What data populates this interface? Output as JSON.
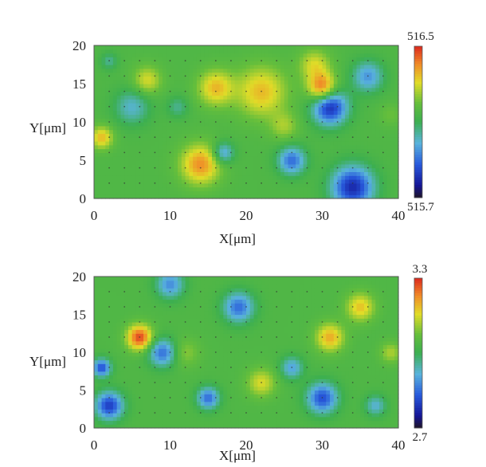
{
  "chart_data": [
    {
      "type": "heatmap",
      "title": "",
      "xlabel": "X[μm]",
      "ylabel": "Y[μm]",
      "xlim": [
        0,
        40
      ],
      "ylim": [
        0,
        20
      ],
      "x_ticks": [
        "0",
        "10",
        "20",
        "30",
        "40"
      ],
      "y_ticks": [
        "0",
        "5",
        "10",
        "15",
        "20"
      ],
      "colorbar": {
        "min": 515.7,
        "max": 516.5,
        "min_label": "515.7",
        "max_label": "516.5"
      },
      "grid_points": "measurement grid every 2 μm in X and Y (shown as dots)",
      "hotspots": [
        {
          "x": 14,
          "y": 4.5,
          "value": 516.4,
          "r": 2.8
        },
        {
          "x": 1,
          "y": 8,
          "value": 516.35,
          "r": 1.6
        },
        {
          "x": 30,
          "y": 14.5,
          "value": 516.45,
          "r": 2.0
        },
        {
          "x": 22,
          "y": 14,
          "value": 516.35,
          "r": 3.5
        },
        {
          "x": 16,
          "y": 14.5,
          "value": 516.35,
          "r": 2.5
        },
        {
          "x": 7,
          "y": 15.5,
          "value": 516.3,
          "r": 2.0
        },
        {
          "x": 29,
          "y": 17.5,
          "value": 516.3,
          "r": 2.2
        },
        {
          "x": 25,
          "y": 9.5,
          "value": 516.25,
          "r": 2.0
        },
        {
          "x": 39,
          "y": 11,
          "value": 516.2,
          "r": 1.6
        },
        {
          "x": 31,
          "y": 12,
          "value": 515.8,
          "r": 2.5
        },
        {
          "x": 34,
          "y": 1.5,
          "value": 515.8,
          "r": 3.0
        },
        {
          "x": 36,
          "y": 16,
          "value": 515.95,
          "r": 2.2
        },
        {
          "x": 5,
          "y": 12,
          "value": 516.0,
          "r": 2.5
        },
        {
          "x": 26,
          "y": 5,
          "value": 515.9,
          "r": 2.0
        },
        {
          "x": 17,
          "y": 6,
          "value": 515.95,
          "r": 1.5
        },
        {
          "x": 2,
          "y": 18,
          "value": 516.05,
          "r": 1.2
        },
        {
          "x": 11,
          "y": 12,
          "value": 516.05,
          "r": 1.5
        }
      ]
    },
    {
      "type": "heatmap",
      "title": "",
      "xlabel": "X[μm]",
      "ylabel": "Y[μm]",
      "xlim": [
        0,
        40
      ],
      "ylim": [
        0,
        20
      ],
      "x_ticks": [
        "0",
        "10",
        "20",
        "30",
        "40"
      ],
      "y_ticks": [
        "0",
        "5",
        "10",
        "15",
        "20"
      ],
      "colorbar": {
        "min": 2.7,
        "max": 3.3,
        "min_label": "2.7",
        "max_label": "3.3"
      },
      "grid_points": "measurement grid every 2 μm in X and Y (shown as dots)",
      "hotspots": [
        {
          "x": 6,
          "y": 12,
          "value": 3.28,
          "r": 1.8
        },
        {
          "x": 31,
          "y": 12,
          "value": 3.2,
          "r": 2.0
        },
        {
          "x": 35,
          "y": 16,
          "value": 3.18,
          "r": 2.0
        },
        {
          "x": 22,
          "y": 6,
          "value": 3.15,
          "r": 2.0
        },
        {
          "x": 12,
          "y": 10,
          "value": 3.1,
          "r": 2.0
        },
        {
          "x": 39,
          "y": 10,
          "value": 3.12,
          "r": 1.5
        },
        {
          "x": 19,
          "y": 16,
          "value": 2.85,
          "r": 2.2
        },
        {
          "x": 9,
          "y": 10,
          "value": 2.85,
          "r": 2.0
        },
        {
          "x": 2,
          "y": 3,
          "value": 2.8,
          "r": 2.0
        },
        {
          "x": 30,
          "y": 4,
          "value": 2.82,
          "r": 2.2
        },
        {
          "x": 1,
          "y": 8,
          "value": 2.82,
          "r": 1.3
        },
        {
          "x": 15,
          "y": 4,
          "value": 2.85,
          "r": 1.6
        },
        {
          "x": 10,
          "y": 19,
          "value": 2.88,
          "r": 2.0
        },
        {
          "x": 26,
          "y": 8,
          "value": 2.9,
          "r": 1.6
        },
        {
          "x": 37,
          "y": 3,
          "value": 2.92,
          "r": 1.5
        }
      ]
    }
  ]
}
